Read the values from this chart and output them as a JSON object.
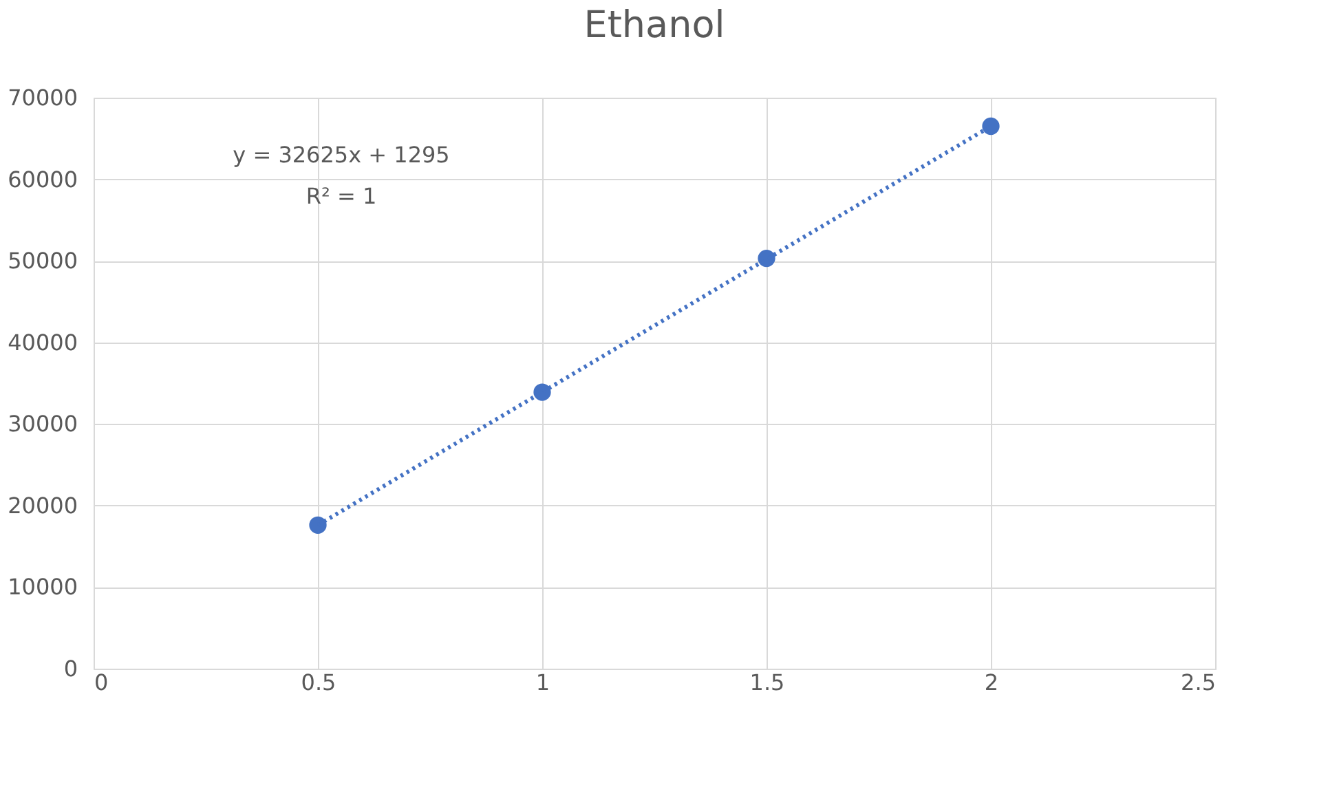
{
  "chart_data": {
    "type": "scatter",
    "title": "Ethanol",
    "x": [
      0.5,
      1,
      1.5,
      2
    ],
    "series": [
      {
        "color": "#4472c4",
        "values": [
          17600,
          33900,
          50300,
          66500
        ],
        "marker": "circle"
      },
      {
        "type": "line",
        "color": "#4472c4",
        "x": [
          0.5,
          2
        ],
        "values": [
          17600,
          66500
        ],
        "line_style": "dotted",
        "marker": "none"
      }
    ],
    "xlim": [
      0,
      2.5
    ],
    "xticks": [
      0,
      0.5,
      1,
      1.5,
      2,
      2.5
    ],
    "ylim": [
      0,
      70000
    ],
    "yticks": [
      0,
      10000,
      20000,
      30000,
      40000,
      50000,
      60000,
      70000
    ],
    "grid": true,
    "annotations": [
      "y = 32625x + 1295",
      "R² = 1"
    ]
  }
}
